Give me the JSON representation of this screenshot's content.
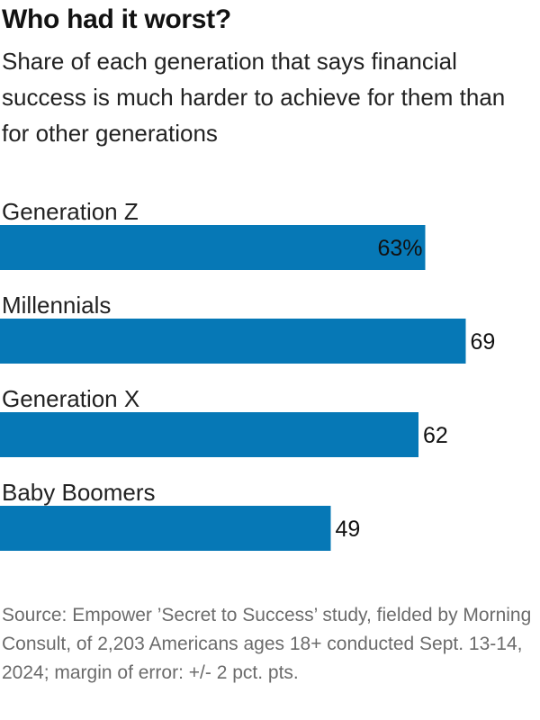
{
  "header": {
    "title": "Who had it worst?",
    "subtitle": "Share of each generation that says financial success is much harder to achieve for them than for other generations"
  },
  "chart_data": {
    "type": "bar",
    "orientation": "horizontal",
    "categories": [
      "Generation Z",
      "Millennials",
      "Generation X",
      "Baby Boomers"
    ],
    "values": [
      63,
      69,
      62,
      49
    ],
    "value_labels": [
      "63%",
      "69",
      "62",
      "49"
    ],
    "value_label_inside": [
      true,
      false,
      false,
      false
    ],
    "bar_color": "#0678b6",
    "xlim": [
      0,
      80
    ],
    "grid": false,
    "legend": "none"
  },
  "footer": {
    "source": "Source: Empower ’Secret to Success’ study, fielded by Morning Consult, of 2,203 Americans ages 18+ conducted Sept. 13-14, 2024; margin of error: +/- 2 pct. pts."
  }
}
